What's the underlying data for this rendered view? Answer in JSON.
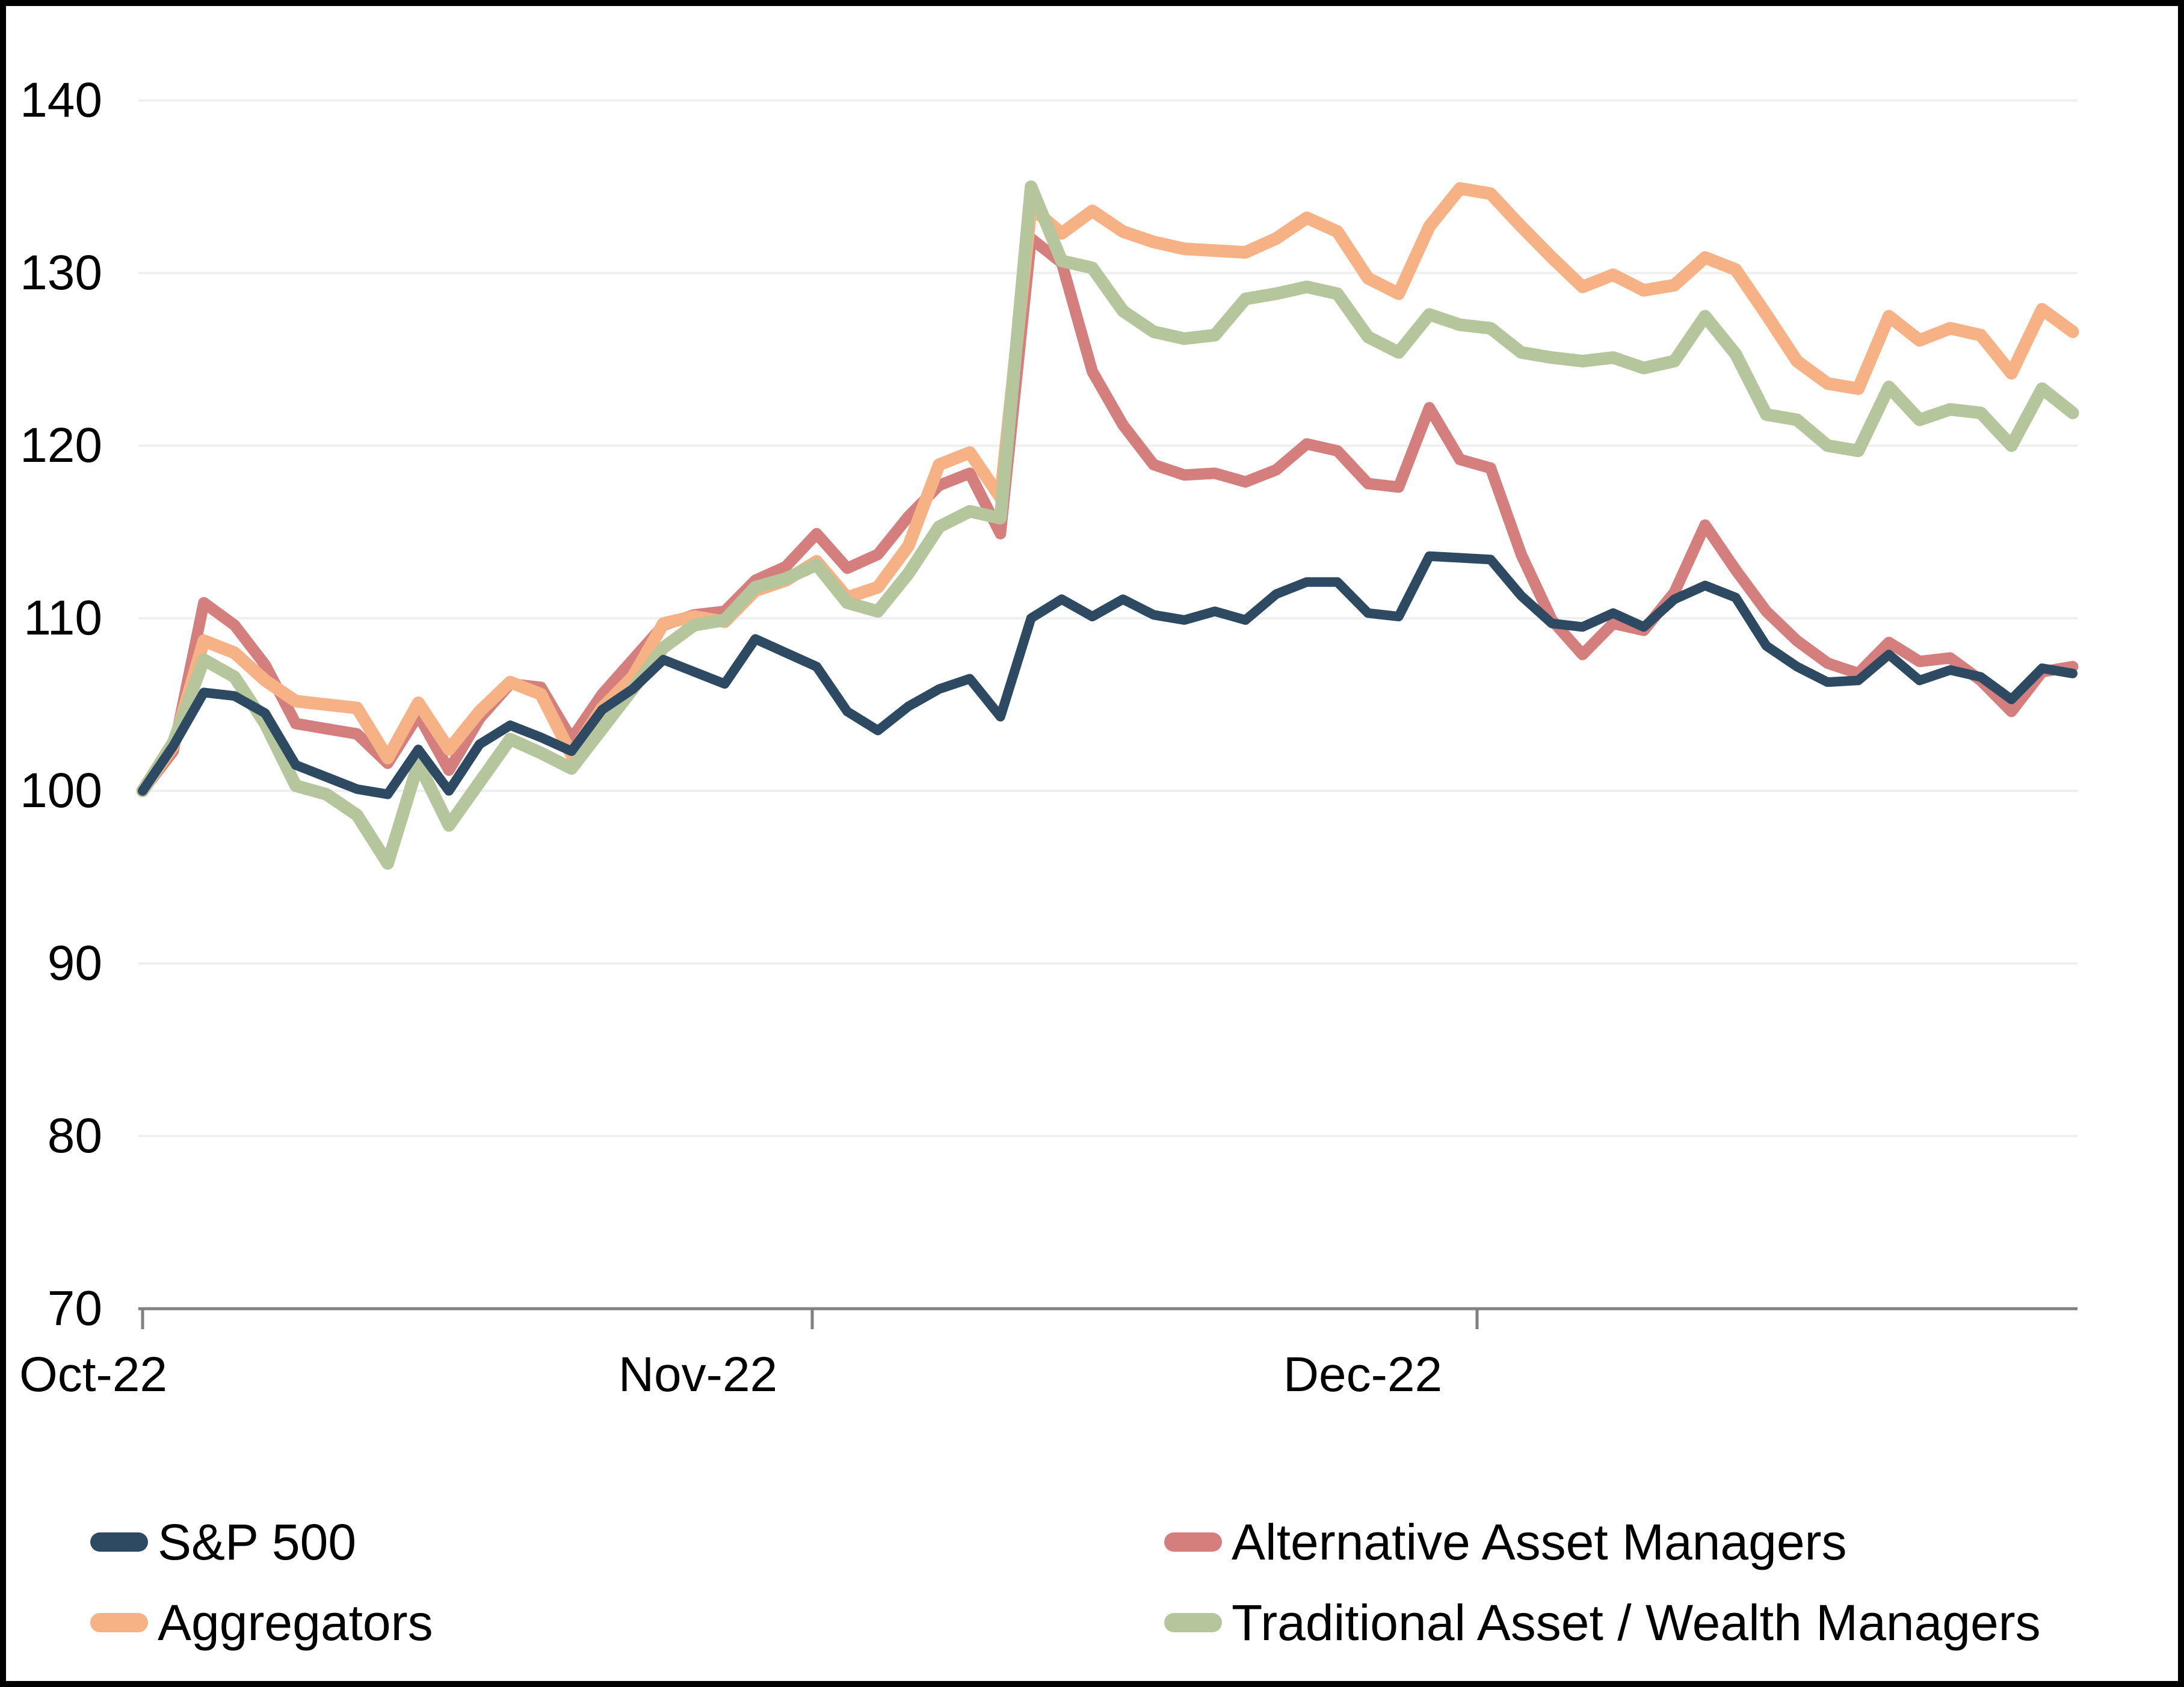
{
  "x_axis": {
    "labels": [
      "Oct-22",
      "Nov-22",
      "Dec-22"
    ]
  },
  "y_axis": {
    "tick_labels": [
      "140",
      "130",
      "120",
      "110",
      "100",
      "90",
      "80",
      "70"
    ]
  },
  "legend": [
    {
      "label": "S&P 500",
      "color": "#2E4A62"
    },
    {
      "label": "Alternative Asset Managers",
      "color": "#D47E7D"
    },
    {
      "label": "Aggregators",
      "color": "#F6B184"
    },
    {
      "label": "Traditional Asset / Wealth Managers",
      "color": "#B5C69C"
    }
  ],
  "colors": {
    "axis_line": "#808080",
    "gridline": "#F0F0F0",
    "text": "#000000",
    "frame": "#000000",
    "background": "#FFFFFF"
  },
  "chart_data": {
    "type": "line",
    "title": "",
    "xlabel": "",
    "ylabel": "",
    "ylim": [
      70,
      140
    ],
    "yticks": [
      140,
      130,
      120,
      110,
      100,
      90,
      80,
      70
    ],
    "grid": "horizontal",
    "legend_position": "bottom",
    "x": [
      "Sep 30",
      "Oct 3",
      "Oct 4",
      "Oct 5",
      "Oct 6",
      "Oct 7",
      "Oct 10",
      "Oct 11",
      "Oct 12",
      "Oct 13",
      "Oct 14",
      "Oct 17",
      "Oct 18",
      "Oct 19",
      "Oct 20",
      "Oct 21",
      "Oct 24",
      "Oct 25",
      "Oct 26",
      "Oct 27",
      "Oct 28",
      "Oct 31",
      "Nov 1",
      "Nov 2",
      "Nov 3",
      "Nov 4",
      "Nov 7",
      "Nov 8",
      "Nov 9",
      "Nov 10",
      "Nov 11",
      "Nov 14",
      "Nov 15",
      "Nov 16",
      "Nov 17",
      "Nov 18",
      "Nov 21",
      "Nov 22",
      "Nov 23",
      "Nov 25",
      "Nov 28",
      "Nov 29",
      "Nov 30",
      "Dec 1",
      "Dec 2",
      "Dec 5",
      "Dec 6",
      "Dec 7",
      "Dec 8",
      "Dec 9",
      "Dec 12",
      "Dec 13",
      "Dec 14",
      "Dec 15",
      "Dec 16",
      "Dec 19",
      "Dec 20",
      "Dec 21",
      "Dec 22",
      "Dec 23",
      "Dec 27",
      "Dec 28",
      "Dec 29",
      "Dec 30"
    ],
    "series": [
      {
        "name": "Alternative Asset Managers",
        "color": "#D47E7D",
        "values": [
          100.0,
          102.3,
          110.9,
          109.6,
          107.3,
          103.9,
          103.6,
          103.3,
          101.6,
          104.4,
          101.2,
          104.2,
          106.2,
          106.0,
          103.0,
          105.6,
          107.6,
          109.6,
          110.2,
          110.4,
          112.2,
          113.0,
          114.9,
          112.9,
          113.7,
          115.9,
          117.7,
          118.4,
          114.9,
          132.0,
          130.6,
          124.3,
          121.2,
          118.9,
          118.3,
          118.4,
          117.9,
          118.6,
          120.1,
          119.7,
          117.8,
          117.6,
          122.2,
          119.2,
          118.7,
          113.7,
          109.9,
          107.9,
          109.7,
          109.3,
          111.5,
          115.4,
          112.8,
          110.4,
          108.7,
          107.4,
          106.8,
          108.6,
          107.5,
          107.7,
          106.4,
          104.6,
          106.9,
          107.2
        ]
      },
      {
        "name": "Aggregators",
        "color": "#F6B184",
        "values": [
          100.0,
          102.6,
          108.7,
          108.0,
          106.4,
          105.2,
          105.0,
          104.8,
          101.9,
          105.1,
          102.4,
          104.6,
          106.3,
          105.6,
          102.1,
          104.8,
          106.6,
          109.7,
          110.1,
          109.8,
          111.6,
          112.2,
          113.3,
          111.2,
          111.8,
          114.2,
          118.9,
          119.6,
          117.0,
          133.8,
          132.3,
          133.6,
          132.4,
          131.8,
          131.4,
          131.3,
          131.2,
          132.0,
          133.2,
          132.4,
          129.7,
          128.8,
          132.7,
          134.9,
          134.6,
          132.7,
          130.9,
          129.2,
          129.9,
          129.0,
          129.3,
          130.9,
          130.2,
          127.6,
          124.9,
          123.6,
          123.3,
          127.5,
          126.1,
          126.8,
          126.4,
          124.2,
          127.9,
          126.6
        ]
      },
      {
        "name": "Traditional Asset / Wealth Managers",
        "color": "#B5C69C",
        "values": [
          100.0,
          102.8,
          107.6,
          106.6,
          103.9,
          100.3,
          99.8,
          98.6,
          95.8,
          101.6,
          98.0,
          100.5,
          103.0,
          102.2,
          101.3,
          103.6,
          105.9,
          108.3,
          109.6,
          109.9,
          111.8,
          112.3,
          113.1,
          110.9,
          110.4,
          112.6,
          115.3,
          116.2,
          115.8,
          135.0,
          130.7,
          130.3,
          127.8,
          126.6,
          126.2,
          126.4,
          128.5,
          128.8,
          129.2,
          128.8,
          126.3,
          125.4,
          127.6,
          127.0,
          126.8,
          125.4,
          125.1,
          124.9,
          125.1,
          124.5,
          124.9,
          127.5,
          125.3,
          121.8,
          121.5,
          120.0,
          119.7,
          123.4,
          121.5,
          122.1,
          121.9,
          120.0,
          123.3,
          121.9
        ]
      },
      {
        "name": "S&P 500",
        "color": "#2E4A62",
        "values": [
          100.0,
          102.6,
          105.7,
          105.5,
          104.5,
          101.5,
          100.8,
          100.1,
          99.8,
          102.4,
          100.0,
          102.7,
          103.8,
          103.1,
          102.3,
          104.7,
          105.9,
          107.6,
          106.9,
          106.2,
          108.8,
          108.0,
          107.2,
          104.6,
          103.5,
          104.9,
          105.9,
          106.5,
          104.3,
          110.0,
          111.1,
          110.1,
          111.1,
          110.2,
          109.9,
          110.4,
          109.9,
          111.4,
          112.1,
          112.1,
          110.3,
          110.1,
          113.6,
          113.5,
          113.4,
          111.3,
          109.7,
          109.5,
          110.3,
          109.5,
          111.1,
          111.9,
          111.2,
          108.4,
          107.2,
          106.3,
          106.4,
          107.9,
          106.4,
          107.0,
          106.6,
          105.3,
          107.1,
          106.8
        ]
      }
    ]
  }
}
